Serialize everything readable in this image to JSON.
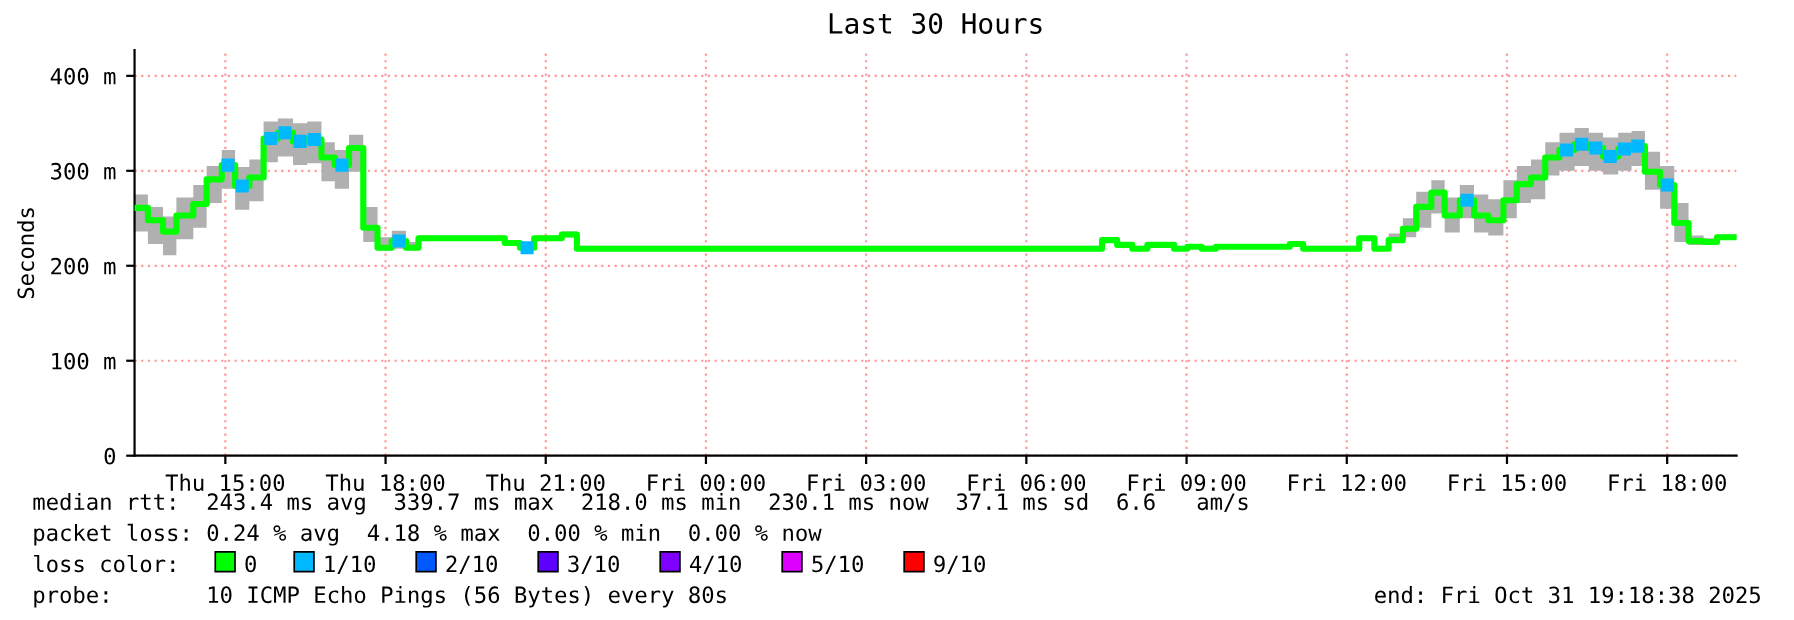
{
  "chart_data": {
    "type": "step",
    "title": "Last 30 Hours",
    "ylabel": "Seconds",
    "legend_title": "loss color:",
    "legend": "bottom",
    "grid": true,
    "x": [
      "2025-10-30T13:18",
      "2025-10-30T13:33",
      "2025-10-30T13:50",
      "2025-10-30T14:05",
      "2025-10-30T14:24",
      "2025-10-30T14:39",
      "2025-10-30T14:56",
      "2025-10-30T15:11",
      "2025-10-30T15:27",
      "2025-10-30T15:43",
      "2025-10-30T15:59",
      "2025-10-30T16:16",
      "2025-10-30T16:32",
      "2025-10-30T16:48",
      "2025-10-30T17:03",
      "2025-10-30T17:19",
      "2025-10-30T17:35",
      "2025-10-30T17:51",
      "2025-10-30T18:07",
      "2025-10-30T18:23",
      "2025-10-30T18:37",
      "2025-10-30T20:14",
      "2025-10-30T20:31",
      "2025-10-30T20:47",
      "2025-10-30T21:18",
      "2025-10-30T21:35",
      "2025-10-31T07:25",
      "2025-10-31T07:42",
      "2025-10-31T07:59",
      "2025-10-31T08:16",
      "2025-10-31T08:46",
      "2025-10-31T09:01",
      "2025-10-31T09:17",
      "2025-10-31T09:33",
      "2025-10-31T10:56",
      "2025-10-31T11:11",
      "2025-10-31T12:14",
      "2025-10-31T12:31",
      "2025-10-31T12:47",
      "2025-10-31T13:03",
      "2025-10-31T13:18",
      "2025-10-31T13:35",
      "2025-10-31T13:50",
      "2025-10-31T14:07",
      "2025-10-31T14:23",
      "2025-10-31T14:39",
      "2025-10-31T14:56",
      "2025-10-31T15:11",
      "2025-10-31T15:27",
      "2025-10-31T15:43",
      "2025-10-31T15:59",
      "2025-10-31T16:16",
      "2025-10-31T16:32",
      "2025-10-31T16:48",
      "2025-10-31T17:05",
      "2025-10-31T17:20",
      "2025-10-31T17:35",
      "2025-10-31T17:52",
      "2025-10-31T18:08",
      "2025-10-31T18:24",
      "2025-10-31T18:41",
      "2025-10-31T18:56",
      "2025-10-31T19:18"
    ],
    "series": [
      {
        "name": "0",
        "color": "#00ff00",
        "values": [
          261,
          248,
          236,
          253,
          265,
          291,
          306,
          284,
          293,
          334,
          340,
          331,
          333,
          314,
          306,
          324,
          240,
          219,
          226,
          219,
          229,
          224,
          219,
          229,
          233,
          218,
          227,
          222,
          218,
          222,
          218,
          220,
          218,
          220,
          223,
          218,
          229,
          218,
          227,
          239,
          262,
          277,
          253,
          269,
          253,
          248,
          269,
          286,
          293,
          314,
          322,
          328,
          324,
          315,
          323,
          326,
          299,
          285,
          245,
          226,
          225,
          230,
          230
        ],
        "lower": [
          236,
          223,
          211,
          228,
          240,
          266,
          281,
          259,
          268,
          309,
          315,
          306,
          308,
          289,
          281,
          299,
          225,
          216,
          218,
          216,
          226,
          221,
          216,
          226,
          230,
          216,
          225,
          220,
          216,
          220,
          216,
          218,
          216,
          218,
          221,
          216,
          226,
          216,
          224,
          230,
          240,
          255,
          235,
          250,
          235,
          232,
          250,
          266,
          270,
          295,
          300,
          305,
          300,
          296,
          300,
          305,
          280,
          260,
          225,
          222,
          222,
          228,
          228
        ],
        "upper": [
          275,
          262,
          252,
          272,
          285,
          305,
          322,
          304,
          312,
          352,
          355,
          350,
          352,
          330,
          322,
          338,
          262,
          230,
          237,
          225,
          232,
          226,
          222,
          232,
          236,
          221,
          230,
          225,
          221,
          225,
          221,
          223,
          221,
          223,
          226,
          221,
          232,
          221,
          234,
          250,
          278,
          290,
          272,
          285,
          275,
          270,
          290,
          305,
          312,
          330,
          340,
          345,
          340,
          335,
          340,
          342,
          320,
          305,
          266,
          232,
          229,
          233,
          233
        ]
      },
      {
        "name": "1/10",
        "color": "#00b8ff",
        "type": "scatter",
        "marker": "square",
        "x": [
          "2025-10-30T15:03",
          "2025-10-30T15:19",
          "2025-10-30T15:51",
          "2025-10-30T16:07",
          "2025-10-30T16:24",
          "2025-10-30T16:40",
          "2025-10-30T17:11",
          "2025-10-30T18:15",
          "2025-10-30T20:39",
          "2025-10-31T14:15",
          "2025-10-31T16:07",
          "2025-10-31T16:24",
          "2025-10-31T16:40",
          "2025-10-31T16:56",
          "2025-10-31T17:12",
          "2025-10-31T17:27",
          "2025-10-31T18:00"
        ],
        "values": [
          306,
          284,
          334,
          340,
          331,
          333,
          306,
          226,
          219,
          269,
          322,
          328,
          324,
          315,
          323,
          326,
          285
        ]
      },
      {
        "name": "2/10",
        "color": "#0059ff",
        "values": [
          null,
          null,
          null,
          null,
          null,
          null,
          null,
          null,
          null,
          null,
          null,
          null,
          null,
          null,
          null,
          null,
          null,
          null,
          null,
          null,
          null,
          null,
          null,
          null,
          null,
          null,
          null,
          null,
          null,
          null,
          null,
          null,
          null,
          null,
          null,
          null,
          null,
          null,
          null,
          null,
          null,
          null,
          null,
          null,
          null,
          null,
          null,
          null,
          null,
          null,
          null,
          null,
          null,
          null,
          null,
          null,
          null,
          null,
          null,
          null,
          null,
          null,
          null
        ]
      },
      {
        "name": "3/10",
        "color": "#5e00ff",
        "values": [
          null,
          null,
          null,
          null,
          null,
          null,
          null,
          null,
          null,
          null,
          null,
          null,
          null,
          null,
          null,
          null,
          null,
          null,
          null,
          null,
          null,
          null,
          null,
          null,
          null,
          null,
          null,
          null,
          null,
          null,
          null,
          null,
          null,
          null,
          null,
          null,
          null,
          null,
          null,
          null,
          null,
          null,
          null,
          null,
          null,
          null,
          null,
          null,
          null,
          null,
          null,
          null,
          null,
          null,
          null,
          null,
          null,
          null,
          null,
          null,
          null,
          null,
          null
        ]
      },
      {
        "name": "4/10",
        "color": "#7e00ff",
        "values": [
          null,
          null,
          null,
          null,
          null,
          null,
          null,
          null,
          null,
          null,
          null,
          null,
          null,
          null,
          null,
          null,
          null,
          null,
          null,
          null,
          null,
          null,
          null,
          null,
          null,
          null,
          null,
          null,
          null,
          null,
          null,
          null,
          null,
          null,
          null,
          null,
          null,
          null,
          null,
          null,
          null,
          null,
          null,
          null,
          null,
          null,
          null,
          null,
          null,
          null,
          null,
          null,
          null,
          null,
          null,
          null,
          null,
          null,
          null,
          null,
          null,
          null,
          null
        ]
      },
      {
        "name": "5/10",
        "color": "#dd00ff",
        "values": [
          null,
          null,
          null,
          null,
          null,
          null,
          null,
          null,
          null,
          null,
          null,
          null,
          null,
          null,
          null,
          null,
          null,
          null,
          null,
          null,
          null,
          null,
          null,
          null,
          null,
          null,
          null,
          null,
          null,
          null,
          null,
          null,
          null,
          null,
          null,
          null,
          null,
          null,
          null,
          null,
          null,
          null,
          null,
          null,
          null,
          null,
          null,
          null,
          null,
          null,
          null,
          null,
          null,
          null,
          null,
          null,
          null,
          null,
          null,
          null,
          null,
          null,
          null
        ]
      },
      {
        "name": "9/10",
        "color": "#ff0000",
        "values": [
          null,
          null,
          null,
          null,
          null,
          null,
          null,
          null,
          null,
          null,
          null,
          null,
          null,
          null,
          null,
          null,
          null,
          null,
          null,
          null,
          null,
          null,
          null,
          null,
          null,
          null,
          null,
          null,
          null,
          null,
          null,
          null,
          null,
          null,
          null,
          null,
          null,
          null,
          null,
          null,
          null,
          null,
          null,
          null,
          null,
          null,
          null,
          null,
          null,
          null,
          null,
          null,
          null,
          null,
          null,
          null,
          null,
          null,
          null,
          null,
          null,
          null,
          null
        ]
      }
    ],
    "xlim": [
      "2025-10-30T13:18",
      "2025-10-31T19:18"
    ],
    "xticks": [
      {
        "value": "2025-10-30T15:00",
        "label": "Thu 15:00"
      },
      {
        "value": "2025-10-30T18:00",
        "label": "Thu 18:00"
      },
      {
        "value": "2025-10-30T21:00",
        "label": "Thu 21:00"
      },
      {
        "value": "2025-10-31T00:00",
        "label": "Fri 00:00"
      },
      {
        "value": "2025-10-31T03:00",
        "label": "Fri 03:00"
      },
      {
        "value": "2025-10-31T06:00",
        "label": "Fri 06:00"
      },
      {
        "value": "2025-10-31T09:00",
        "label": "Fri 09:00"
      },
      {
        "value": "2025-10-31T12:00",
        "label": "Fri 12:00"
      },
      {
        "value": "2025-10-31T15:00",
        "label": "Fri 15:00"
      },
      {
        "value": "2025-10-31T18:00",
        "label": "Fri 18:00"
      }
    ],
    "ylim": [
      0,
      427
    ],
    "yticks": [
      0,
      {
        "value": 100,
        "label": "100 m"
      },
      {
        "value": 200,
        "label": "200 m"
      },
      {
        "value": 300,
        "label": "300 m"
      },
      {
        "value": 400,
        "label": "400 m"
      }
    ],
    "annotations": [
      "median rtt:  243.4 ms avg  339.7 ms max  218.0 ms min  230.1 ms now  37.1 ms sd  6.6   am/s",
      "packet loss: 0.24 % avg  4.18 % max  0.00 % min  0.00 % now",
      "probe:       10 ICMP Echo Pings (56 Bytes) every 80s",
      "end: Fri Oct 31 19:18:38 2025"
    ]
  }
}
